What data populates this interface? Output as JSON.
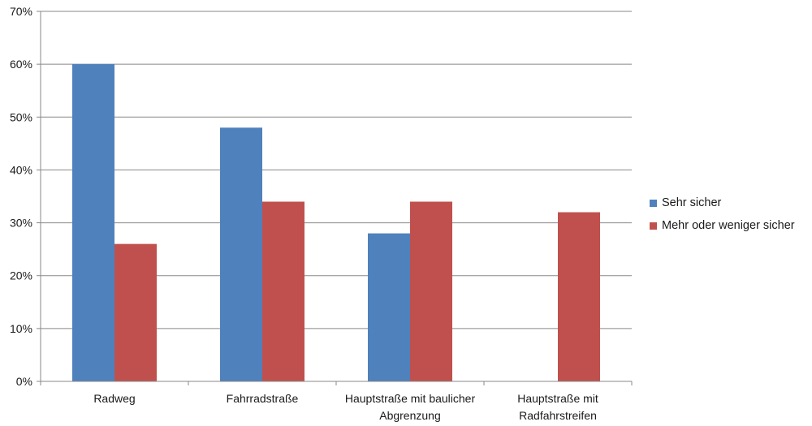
{
  "chart_data": {
    "type": "bar",
    "categories": [
      [
        "Radweg"
      ],
      [
        "Fahrradstraße"
      ],
      [
        "Hauptstraße mit baulicher",
        "Abgrenzung"
      ],
      [
        "Hauptstraße mit",
        "Radfahrstreifen"
      ]
    ],
    "series": [
      {
        "name": "Sehr sicher",
        "color": "#4F81BD",
        "values": [
          60,
          48,
          28,
          null
        ]
      },
      {
        "name": "Mehr oder weniger sicher",
        "color": "#C0504D",
        "values": [
          26,
          34,
          34,
          32
        ]
      }
    ],
    "ylim": [
      0,
      70
    ],
    "yticks": [
      0,
      10,
      20,
      30,
      40,
      50,
      60,
      70
    ],
    "ytick_format": "%",
    "grid": true,
    "legend_position": "right"
  }
}
